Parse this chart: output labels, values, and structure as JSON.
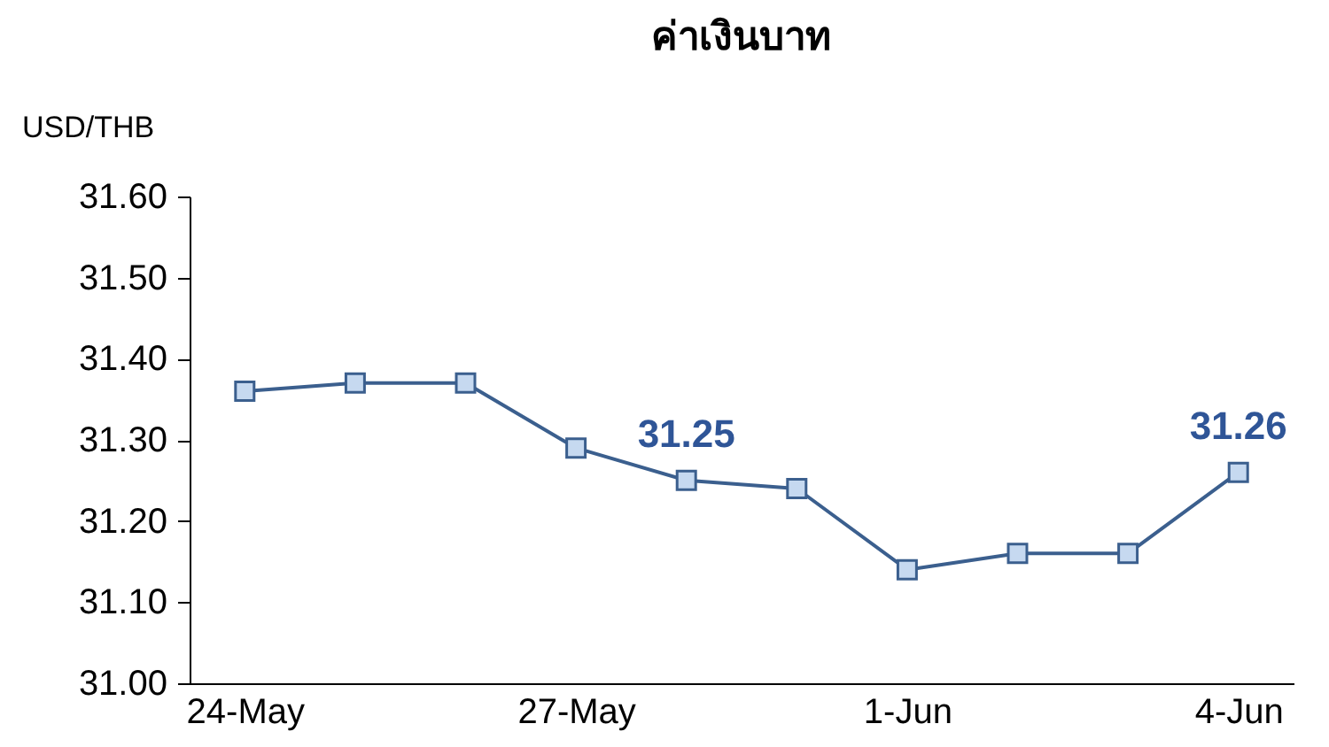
{
  "chart_data": {
    "type": "line",
    "title": "ค่าเงินบาท",
    "ylabel": "USD/THB",
    "categories": [
      "24-May",
      null,
      null,
      "27-May",
      null,
      null,
      "1-Jun",
      null,
      null,
      "4-Jun"
    ],
    "series": [
      {
        "color": "#3b5f8e",
        "values": [
          31.36,
          31.37,
          31.37,
          31.29,
          31.25,
          31.24,
          31.14,
          31.16,
          31.16,
          31.26
        ],
        "value_labels": [
          null,
          null,
          null,
          null,
          "31.25",
          null,
          null,
          null,
          null,
          "31.26"
        ]
      }
    ],
    "ylim": [
      31.0,
      31.6
    ],
    "yticks": [
      {
        "value": 31.0,
        "label": "31.00"
      },
      {
        "value": 31.1,
        "label": "31.10"
      },
      {
        "value": 31.2,
        "label": "31.20"
      },
      {
        "value": 31.3,
        "label": "31.30"
      },
      {
        "value": 31.4,
        "label": "31.40"
      },
      {
        "value": 31.5,
        "label": "31.50"
      },
      {
        "value": 31.6,
        "label": "31.60"
      }
    ],
    "grid": false,
    "marker": "square",
    "line_style": "solid"
  }
}
